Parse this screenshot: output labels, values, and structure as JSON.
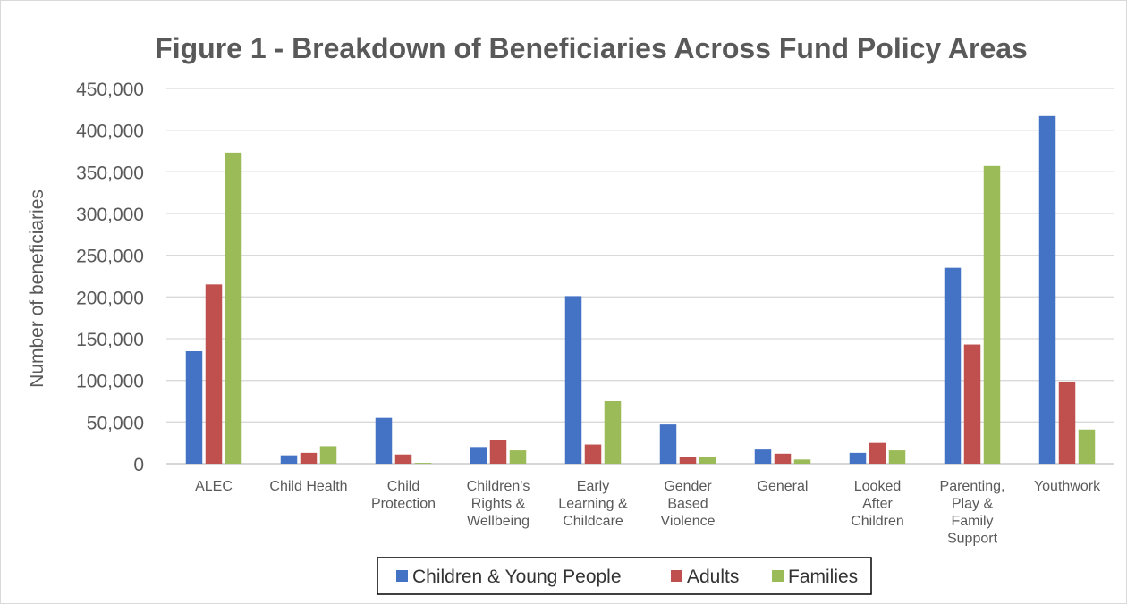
{
  "chart_data": {
    "type": "bar",
    "title": "Figure 1 - Breakdown of Beneficiaries Across Fund Policy Areas",
    "xlabel": "",
    "ylabel": "Number of beneficiaries",
    "ylim": [
      0,
      450000
    ],
    "ytick_step": 50000,
    "yticks": [
      "0",
      "50,000",
      "100,000",
      "150,000",
      "200,000",
      "250,000",
      "300,000",
      "350,000",
      "400,000",
      "450,000"
    ],
    "grid": true,
    "legend_position": "bottom",
    "categories": [
      "ALEC",
      "Child Health",
      "Child\nProtection",
      "Children's\nRights &\nWellbeing",
      "Early\nLearning &\nChildcare",
      "Gender\nBased\nViolence",
      "General",
      "Looked\nAfter\nChildren",
      "Parenting,\nPlay &\nFamily\nSupport",
      "Youthwork"
    ],
    "series": [
      {
        "name": "Children & Young People",
        "color": "#4472c4",
        "values": [
          135000,
          10000,
          55000,
          20000,
          201000,
          47000,
          17000,
          13000,
          235000,
          417000
        ]
      },
      {
        "name": "Adults",
        "color": "#c0504d",
        "values": [
          215000,
          13000,
          11000,
          28000,
          23000,
          8000,
          12000,
          25000,
          143000,
          98000
        ]
      },
      {
        "name": "Families",
        "color": "#9bbb59",
        "values": [
          373000,
          21000,
          1000,
          16000,
          75000,
          8000,
          5000,
          16000,
          357000,
          41000
        ]
      }
    ]
  }
}
